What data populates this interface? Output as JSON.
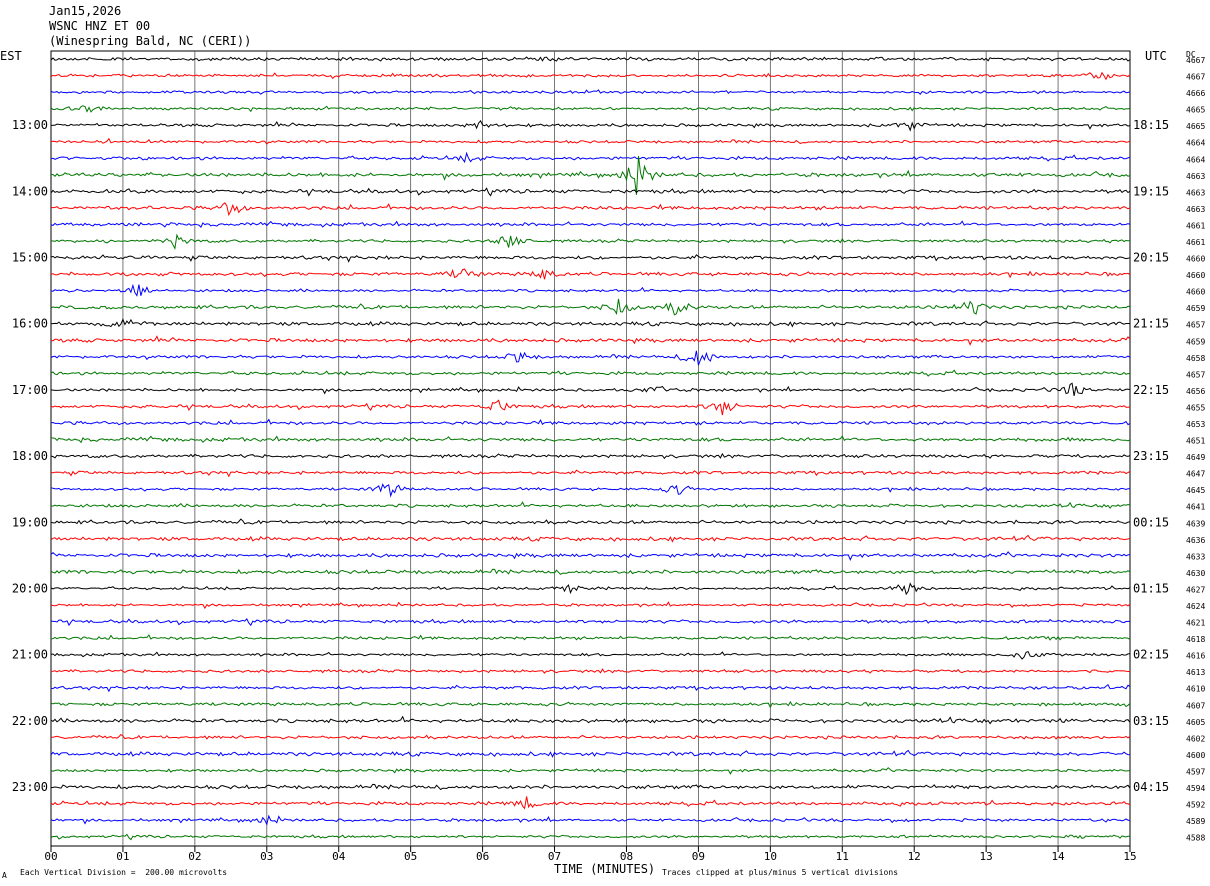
{
  "header": {
    "date": "Jan15,2026",
    "station": "WSNC HNZ ET 00",
    "location": "(Winespring Bald, NC (CERI))"
  },
  "left_timezone": "EST",
  "right_timezone": "UTC",
  "dc_label": "DC",
  "footer": {
    "xlabel": "TIME (MINUTES)",
    "scale_note": "Each Vertical Division =  200.00 microvolts",
    "clip_note": "Traces clipped at plus/minus 5 vertical divisions",
    "corner_mark": "A"
  },
  "chart_data": {
    "type": "line",
    "title": "WSNC HNZ ET 00",
    "xlabel": "TIME (MINUTES)",
    "ylabel": "",
    "xlim": [
      0,
      15
    ],
    "x_ticks": [
      "00",
      "01",
      "02",
      "03",
      "04",
      "05",
      "06",
      "07",
      "08",
      "09",
      "10",
      "11",
      "12",
      "13",
      "14",
      "15"
    ],
    "grid": true,
    "trace_colors": [
      "#000000",
      "#ff0000",
      "#0000ff",
      "#007700"
    ],
    "left_time_labels": [
      "13:00",
      "14:00",
      "15:00",
      "16:00",
      "17:00",
      "18:00",
      "19:00",
      "20:00",
      "21:00",
      "22:00",
      "23:00"
    ],
    "right_time_labels": [
      "18:15",
      "19:15",
      "20:15",
      "21:15",
      "22:15",
      "23:15",
      "00:15",
      "01:15",
      "02:15",
      "03:15",
      "04:15"
    ],
    "dc_offsets": [
      4667,
      4667,
      4666,
      4665,
      4665,
      4664,
      4664,
      4663,
      4663,
      4663,
      4661,
      4661,
      4660,
      4660,
      4660,
      4659,
      4657,
      4659,
      4658,
      4657,
      4656,
      4655,
      4653,
      4651,
      4649,
      4647,
      4645,
      4641,
      4639,
      4636,
      4633,
      4630,
      4627,
      4624,
      4621,
      4618,
      4616,
      4613,
      4610,
      4607,
      4605,
      4602,
      4600,
      4597,
      4594,
      4592,
      4589,
      4588
    ],
    "events": [
      {
        "trace": 0,
        "minute": 7.0,
        "amp": 4
      },
      {
        "trace": 1,
        "minute": 14.6,
        "amp": 5
      },
      {
        "trace": 3,
        "minute": 0.5,
        "amp": 5
      },
      {
        "trace": 4,
        "minute": 6.0,
        "amp": 5
      },
      {
        "trace": 4,
        "minute": 11.9,
        "amp": 6
      },
      {
        "trace": 6,
        "minute": 5.8,
        "amp": 4
      },
      {
        "trace": 7,
        "minute": 8.15,
        "amp": 22
      },
      {
        "trace": 9,
        "minute": 2.5,
        "amp": 8
      },
      {
        "trace": 11,
        "minute": 1.75,
        "amp": 8
      },
      {
        "trace": 11,
        "minute": 6.4,
        "amp": 9
      },
      {
        "trace": 13,
        "minute": 5.7,
        "amp": 7
      },
      {
        "trace": 13,
        "minute": 6.85,
        "amp": 6
      },
      {
        "trace": 14,
        "minute": 1.2,
        "amp": 9
      },
      {
        "trace": 15,
        "minute": 7.9,
        "amp": 9
      },
      {
        "trace": 15,
        "minute": 8.7,
        "amp": 8
      },
      {
        "trace": 15,
        "minute": 12.8,
        "amp": 10
      },
      {
        "trace": 16,
        "minute": 1.0,
        "amp": 5
      },
      {
        "trace": 18,
        "minute": 9.0,
        "amp": 14
      },
      {
        "trace": 18,
        "minute": 6.5,
        "amp": 6
      },
      {
        "trace": 20,
        "minute": 14.2,
        "amp": 7
      },
      {
        "trace": 20,
        "minute": 8.4,
        "amp": 6
      },
      {
        "trace": 21,
        "minute": 6.2,
        "amp": 7
      },
      {
        "trace": 21,
        "minute": 9.35,
        "amp": 9
      },
      {
        "trace": 26,
        "minute": 4.7,
        "amp": 9
      },
      {
        "trace": 26,
        "minute": 8.7,
        "amp": 6
      },
      {
        "trace": 32,
        "minute": 11.9,
        "amp": 7
      },
      {
        "trace": 32,
        "minute": 7.2,
        "amp": 5
      },
      {
        "trace": 36,
        "minute": 13.55,
        "amp": 6
      },
      {
        "trace": 45,
        "minute": 6.6,
        "amp": 6
      },
      {
        "trace": 46,
        "minute": 3.0,
        "amp": 5
      }
    ]
  }
}
